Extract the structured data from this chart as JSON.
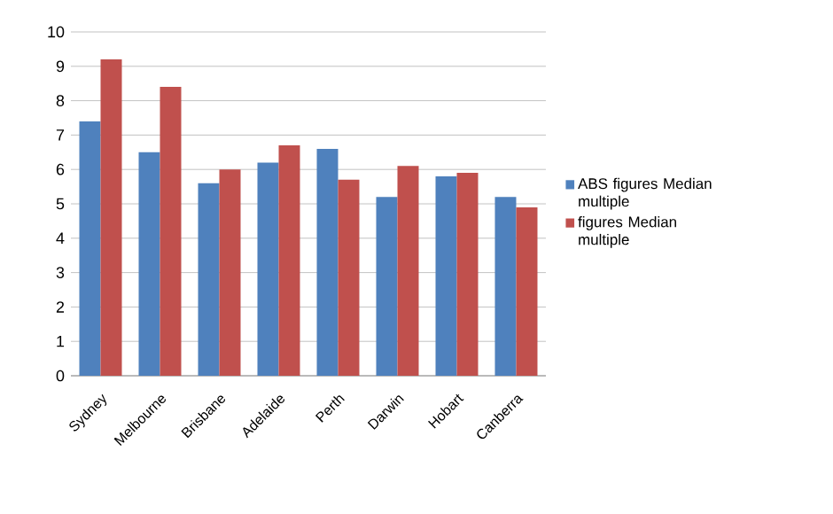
{
  "chart_data": {
    "type": "bar",
    "categories": [
      "Sydney",
      "Melbourne",
      "Brisbane",
      "Adelaide",
      "Perth",
      "Darwin",
      "Hobart",
      "Canberra"
    ],
    "series": [
      {
        "name": "ABS figures Median multiple",
        "color": "#4f81bd",
        "values": [
          7.4,
          6.5,
          5.6,
          6.2,
          6.6,
          5.2,
          5.8,
          5.2
        ]
      },
      {
        "name": "figures Median multiple",
        "color": "#c0504d",
        "values": [
          9.2,
          8.4,
          6.0,
          6.7,
          5.7,
          6.1,
          5.9,
          4.9
        ]
      }
    ],
    "ylim": [
      0,
      10
    ],
    "yticks": [
      0,
      1,
      2,
      3,
      4,
      5,
      6,
      7,
      8,
      9,
      10
    ],
    "grid": "y",
    "legend": "right"
  }
}
